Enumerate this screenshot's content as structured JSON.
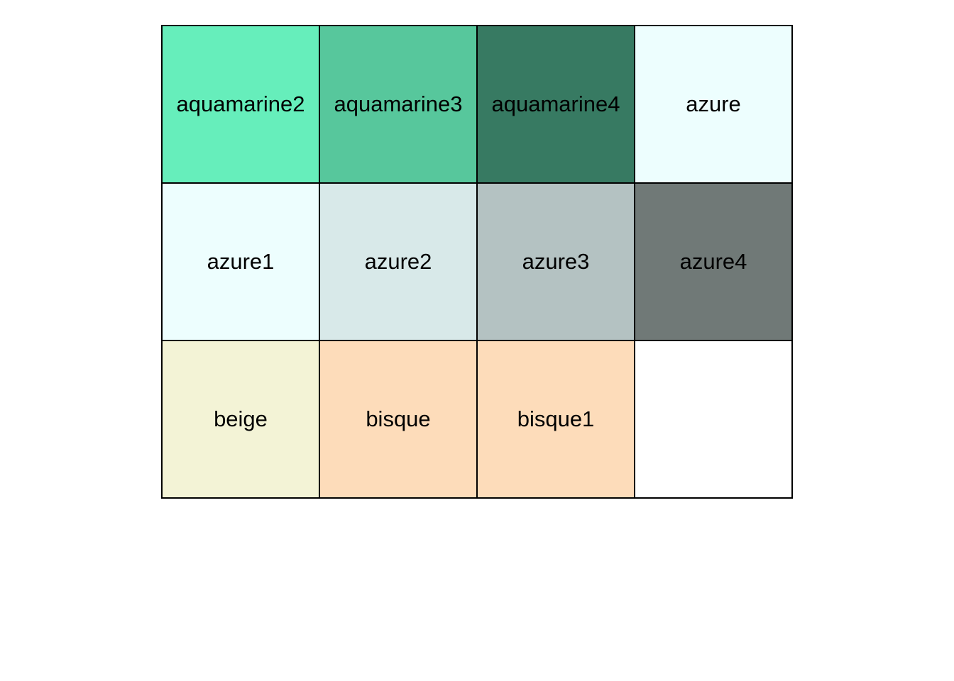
{
  "swatches": [
    {
      "label": "aquamarine2",
      "color": "#66EEBB"
    },
    {
      "label": "aquamarine3",
      "color": "#57C79C"
    },
    {
      "label": "aquamarine4",
      "color": "#377A62"
    },
    {
      "label": "azure",
      "color": "#EDFEFE"
    },
    {
      "label": "azure1",
      "color": "#EDFEFE"
    },
    {
      "label": "azure2",
      "color": "#D8E9E9"
    },
    {
      "label": "azure3",
      "color": "#B4C2C2"
    },
    {
      "label": "azure4",
      "color": "#707977"
    },
    {
      "label": "beige",
      "color": "#F3F3D6"
    },
    {
      "label": "bisque",
      "color": "#FDDCBA"
    },
    {
      "label": "bisque1",
      "color": "#FDDCBA"
    },
    {
      "label": "",
      "color": "#FFFFFF"
    }
  ]
}
